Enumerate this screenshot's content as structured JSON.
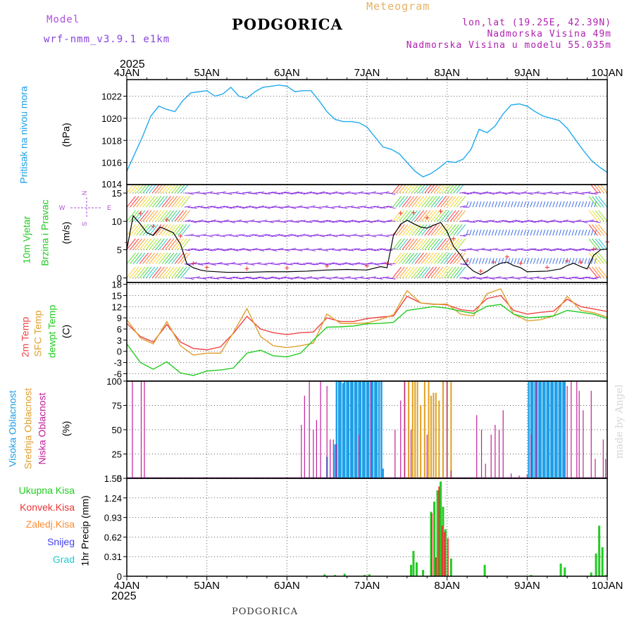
{
  "header": {
    "model_label": "Model",
    "model_name": "wrf-nmm_v3.9.1  e1km",
    "title": "PODGORICA",
    "meteogram": "Meteogram",
    "lonlat": "lon,lat (19.25E, 42.39N)",
    "elevation": "Nadmorska Visina 49m",
    "model_elevation": "Nadmorska Visina u modelu 55.035m",
    "year_top": "2025",
    "year_bottom": "2025",
    "footer": "PODGORICA",
    "credit": "made by Angel"
  },
  "colors": {
    "pressure": "#22aaee",
    "temp2m": "#ee4444",
    "sfc": "#e0a030",
    "dewpt": "#22cc22",
    "wind_speed": "#000000",
    "wind_arrows": "#8a2be2",
    "high_cloud": "#1e9fe8",
    "mid_cloud": "#e0a020",
    "low_cloud": "#c0209a",
    "precip_total": "#22cc22",
    "precip_conv": "#ee3333",
    "precip_snow": "#4040ee",
    "precip_grad": "#22cccc",
    "precip_frz": "#ff8c33"
  },
  "time_axis": {
    "labels": [
      "4JAN",
      "5JAN",
      "6JAN",
      "7JAN",
      "8JAN",
      "9JAN",
      "10JAN"
    ],
    "day_range": [
      4,
      10
    ]
  },
  "panels": {
    "pressure": {
      "title": "Pritisak na nivou mora",
      "unit": "(hPa)",
      "ticks": [
        "1016",
        "1018",
        "1020",
        "1022"
      ],
      "bottom_tick": "1014"
    },
    "wind": {
      "title1": "10m Vjetar",
      "title2": "Brzina i Pravac",
      "unit": "(m/s)",
      "ticks": [
        "0",
        "5",
        "10",
        "15"
      ],
      "compass": {
        "n": "N",
        "s": "S",
        "e": "E",
        "w": "W"
      }
    },
    "temp": {
      "t1": "2m Temp",
      "t2": "SFC Temp",
      "t3": "dewpt Temp",
      "unit": "(C)",
      "ticks": [
        "18",
        "15",
        "12",
        "9",
        "6",
        "3",
        "0",
        "-3",
        "-6"
      ]
    },
    "cloud": {
      "t1": "Visoka Oblacnost",
      "t2": "Srednja Oblacnost",
      "t3": "Niska Oblacnost",
      "unit": "(%)",
      "ticks": [
        "0",
        "25",
        "50",
        "75",
        "100"
      ]
    },
    "precip": {
      "legend": [
        "Ukupna Kisa",
        "Konvek.Kisa",
        "Zaledj.Kisa",
        "Snijeg",
        "Grad"
      ],
      "unit": "1hr Precip (mm)",
      "ticks": [
        "0",
        "0.31",
        "0.62",
        "0.93",
        "1.24",
        "1.55"
      ]
    }
  },
  "chart_data": [
    {
      "type": "line",
      "name": "pressure",
      "ylim": [
        1014,
        1023.5
      ],
      "x": [
        4.0,
        4.1,
        4.2,
        4.3,
        4.4,
        4.5,
        4.6,
        4.7,
        4.8,
        4.9,
        5.0,
        5.1,
        5.2,
        5.3,
        5.4,
        5.5,
        5.6,
        5.7,
        5.8,
        5.9,
        6.0,
        6.1,
        6.2,
        6.3,
        6.4,
        6.5,
        6.6,
        6.7,
        6.8,
        6.9,
        7.0,
        7.1,
        7.2,
        7.3,
        7.4,
        7.5,
        7.6,
        7.7,
        7.8,
        7.9,
        8.0,
        8.1,
        8.2,
        8.3,
        8.4,
        8.5,
        8.6,
        8.7,
        8.8,
        8.9,
        9.0,
        9.1,
        9.2,
        9.3,
        9.4,
        9.5,
        9.6,
        9.7,
        9.8,
        9.9,
        10.0
      ],
      "y": [
        1015.2,
        1016.8,
        1018.4,
        1020.2,
        1021.1,
        1020.8,
        1020.6,
        1021.6,
        1022.3,
        1022.4,
        1022.5,
        1022.0,
        1022.2,
        1022.8,
        1022.0,
        1021.8,
        1022.4,
        1022.8,
        1022.9,
        1023.0,
        1022.9,
        1022.4,
        1022.5,
        1022.5,
        1021.6,
        1020.6,
        1019.9,
        1019.7,
        1019.7,
        1019.6,
        1019.2,
        1018.3,
        1017.4,
        1017.2,
        1016.8,
        1016.0,
        1015.2,
        1014.7,
        1015.0,
        1015.5,
        1016.1,
        1016.0,
        1016.3,
        1017.2,
        1019.0,
        1018.7,
        1019.3,
        1020.4,
        1021.2,
        1021.3,
        1021.1,
        1020.6,
        1020.2,
        1020.0,
        1019.8,
        1019.1,
        1018.1,
        1017.1,
        1016.2,
        1015.6,
        1015.1
      ]
    },
    {
      "type": "line",
      "name": "wind",
      "ylim": [
        -0.8,
        16.5
      ],
      "x": [
        4.0,
        4.08,
        4.17,
        4.25,
        4.33,
        4.42,
        4.5,
        4.58,
        4.67,
        4.75,
        4.83,
        4.92,
        5.0,
        5.25,
        5.5,
        5.75,
        6.0,
        6.25,
        6.5,
        6.75,
        7.0,
        7.17,
        7.25,
        7.33,
        7.42,
        7.5,
        7.58,
        7.67,
        7.75,
        7.83,
        7.92,
        8.0,
        8.08,
        8.17,
        8.25,
        8.33,
        8.42,
        8.5,
        8.58,
        8.67,
        8.75,
        8.83,
        8.92,
        9.0,
        9.25,
        9.42,
        9.5,
        9.58,
        9.67,
        9.75,
        9.83,
        9.92,
        10.0
      ],
      "y": [
        5.0,
        11.0,
        9.5,
        8.0,
        7.5,
        9.0,
        8.5,
        8.0,
        6.0,
        2.5,
        1.8,
        1.4,
        1.2,
        1.0,
        1.0,
        1.1,
        1.1,
        1.2,
        1.4,
        1.5,
        1.4,
        2.0,
        1.8,
        7.5,
        9.5,
        10.2,
        9.6,
        9.0,
        8.8,
        9.3,
        9.8,
        8.2,
        5.6,
        4.0,
        2.2,
        1.2,
        0.6,
        1.2,
        2.0,
        2.6,
        2.8,
        2.2,
        1.8,
        1.1,
        1.2,
        1.6,
        2.2,
        2.6,
        2.0,
        1.6,
        4.0,
        5.0,
        5.1
      ]
    },
    {
      "type": "line",
      "name": "temperature",
      "ylim": [
        -8,
        18.5
      ],
      "x": [
        4.0,
        4.17,
        4.33,
        4.5,
        4.67,
        4.83,
        5.0,
        5.17,
        5.33,
        5.5,
        5.67,
        5.83,
        6.0,
        6.17,
        6.33,
        6.5,
        6.67,
        6.83,
        7.0,
        7.17,
        7.33,
        7.5,
        7.67,
        7.83,
        8.0,
        8.17,
        8.33,
        8.5,
        8.67,
        8.83,
        9.0,
        9.17,
        9.33,
        9.5,
        9.67,
        9.83,
        10.0
      ],
      "series": [
        {
          "name": "2m Temp",
          "y": [
            7.5,
            4.0,
            2.5,
            7.2,
            2.5,
            0.8,
            0.4,
            1.2,
            4.8,
            9.4,
            6.0,
            5.0,
            4.5,
            5.0,
            5.2,
            9.0,
            8.0,
            8.0,
            8.8,
            9.2,
            9.5,
            14.8,
            13.0,
            12.7,
            12.5,
            11.2,
            10.8,
            14.2,
            15.0,
            11.0,
            10.0,
            10.5,
            10.8,
            14.0,
            12.0,
            11.4,
            10.7
          ]
        },
        {
          "name": "SFC Temp",
          "y": [
            8.5,
            3.6,
            2.0,
            8.0,
            1.5,
            -1.0,
            -0.5,
            -0.5,
            5.0,
            11.5,
            4.0,
            1.5,
            1.0,
            1.5,
            2.2,
            10.0,
            7.5,
            7.5,
            7.6,
            8.6,
            9.8,
            16.3,
            13.0,
            12.6,
            12.7,
            10.0,
            9.5,
            15.5,
            16.8,
            10.0,
            8.2,
            8.5,
            9.5,
            14.8,
            11.0,
            10.4,
            9.2
          ]
        },
        {
          "name": "dewpt Temp",
          "y": [
            2.0,
            -3.0,
            -4.8,
            -2.8,
            -5.8,
            -6.5,
            -5.3,
            -5.0,
            -4.5,
            -0.5,
            0.3,
            -1.2,
            -1.5,
            -0.5,
            3.0,
            6.5,
            6.6,
            6.8,
            7.4,
            7.5,
            7.8,
            11.0,
            11.5,
            12.0,
            11.6,
            10.8,
            10.2,
            12.1,
            12.6,
            10.0,
            9.0,
            9.2,
            9.5,
            11.0,
            10.5,
            10.0,
            8.8
          ]
        }
      ]
    },
    {
      "type": "bar",
      "name": "cloud",
      "ylim": [
        0,
        100
      ],
      "low_cloud": {
        "x": [
          4.07,
          4.18,
          4.22,
          6.18,
          6.22,
          6.28,
          6.33,
          6.37,
          6.42,
          6.5,
          6.54,
          6.58,
          6.62,
          6.9,
          7.05,
          7.35,
          7.42,
          7.47,
          7.55,
          7.75,
          8.0,
          8.05,
          8.37,
          8.43,
          8.48,
          8.55,
          8.6,
          8.65,
          8.7,
          8.8,
          8.9,
          9.0,
          9.05,
          9.12,
          9.5,
          9.55,
          9.62,
          9.65,
          9.7,
          9.8,
          9.85,
          9.95,
          9.98
        ],
        "y": [
          100,
          100,
          100,
          55,
          85,
          100,
          50,
          60,
          100,
          95,
          40,
          40,
          35,
          45,
          100,
          50,
          80,
          100,
          50,
          45,
          100,
          8,
          65,
          50,
          15,
          45,
          55,
          50,
          70,
          5,
          3,
          4,
          45,
          100,
          95,
          100,
          100,
          90,
          70,
          90,
          20,
          40,
          20
        ]
      },
      "mid_cloud": {
        "x": [
          7.47,
          7.52,
          7.57,
          7.6,
          7.63,
          7.67,
          7.72,
          7.77,
          7.8,
          7.83,
          7.86,
          7.9,
          7.95,
          8.0,
          8.05
        ],
        "y": [
          100,
          100,
          100,
          100,
          100,
          75,
          100,
          100,
          85,
          88,
          88,
          80,
          100,
          100,
          100
        ]
      },
      "high_cloud": {
        "x": [
          6.5,
          6.6,
          6.62,
          6.65,
          6.67,
          6.7,
          6.72,
          6.75,
          6.77,
          6.8,
          6.82,
          6.85,
          6.87,
          6.9,
          6.92,
          6.95,
          6.97,
          7.0,
          7.02,
          7.05,
          7.07,
          7.1,
          7.12,
          7.15,
          7.18,
          7.2,
          9.02,
          9.05,
          9.07,
          9.1,
          9.12,
          9.15,
          9.17,
          9.2,
          9.22,
          9.25,
          9.27,
          9.3,
          9.32,
          9.35,
          9.37,
          9.4,
          9.42,
          9.45,
          9.47
        ],
        "y": [
          22,
          35,
          100,
          100,
          100,
          98,
          100,
          100,
          100,
          100,
          100,
          100,
          100,
          100,
          100,
          100,
          100,
          100,
          100,
          100,
          100,
          100,
          100,
          100,
          100,
          10,
          100,
          100,
          100,
          100,
          100,
          100,
          100,
          100,
          100,
          100,
          100,
          100,
          100,
          100,
          100,
          100,
          100,
          100,
          100
        ]
      }
    },
    {
      "type": "bar",
      "name": "precip",
      "ylim": [
        0,
        1.55
      ],
      "total": {
        "x": [
          6.47,
          6.6,
          6.72,
          6.97,
          7.03,
          7.55,
          7.58,
          7.62,
          7.7,
          7.8,
          7.84,
          7.88,
          7.92,
          7.95,
          7.98,
          8.05,
          8.47,
          9.05,
          9.42,
          9.47,
          9.8,
          9.86,
          9.9,
          9.94,
          9.98
        ],
        "y": [
          0.03,
          0.02,
          0.04,
          0.02,
          0.03,
          0.18,
          0.4,
          0.22,
          0.1,
          1.02,
          1.18,
          1.36,
          1.5,
          1.1,
          0.74,
          0.28,
          0.18,
          0.02,
          0.2,
          0.14,
          0.06,
          0.36,
          0.8,
          0.46,
          0.02
        ]
      },
      "convective": {
        "x": [
          7.81,
          7.86,
          7.9,
          7.94,
          7.97,
          8.01
        ],
        "y": [
          1.0,
          0.3,
          1.42,
          0.8,
          0.7,
          0.6
        ]
      }
    }
  ]
}
